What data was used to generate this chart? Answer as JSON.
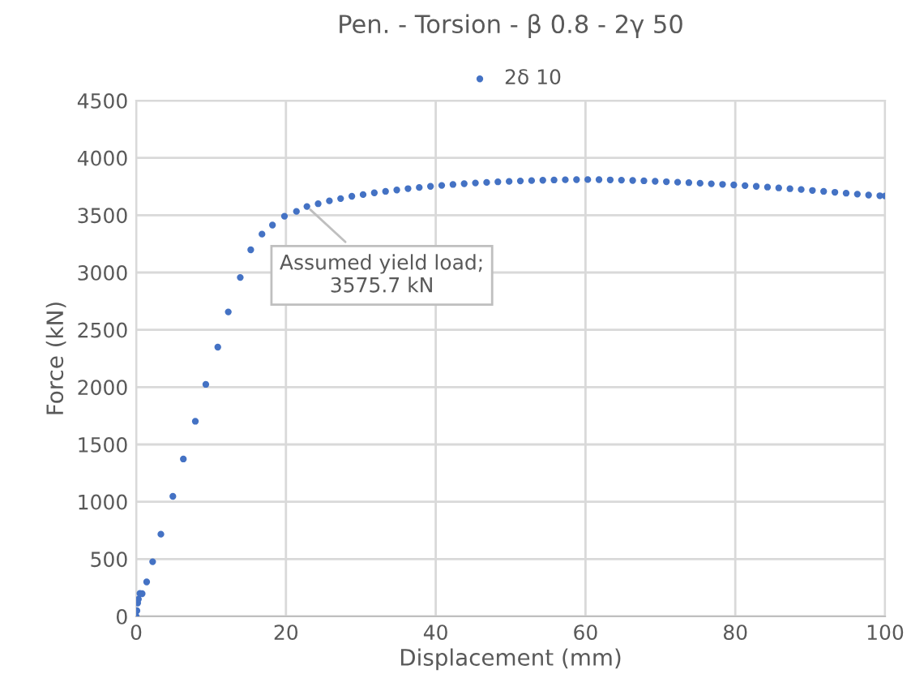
{
  "chart_data": {
    "type": "scatter",
    "title": "Pen. - Torsion - β 0.8 - 2γ 50",
    "xlabel": "Displacement (mm)",
    "ylabel": "Force (kN)",
    "series": [
      {
        "name": "2δ 10",
        "color": "#4472c4",
        "x": [
          0,
          0.1,
          0.2,
          0.3,
          0.5,
          0.8,
          1.4,
          2.2,
          3.3,
          4.9,
          6.3,
          7.9,
          9.3,
          10.9,
          12.3,
          13.9,
          15.3,
          16.8,
          18.2,
          19.8,
          21.4,
          22.8,
          24.3,
          25.8,
          27.3,
          28.8,
          30.3,
          31.8,
          33.3,
          34.8,
          36.3,
          37.8,
          39.3,
          40.8,
          42.3,
          43.8,
          45.3,
          46.8,
          48.3,
          49.8,
          51.3,
          52.8,
          54.3,
          55.8,
          57.3,
          58.8,
          60.3,
          61.8,
          63.3,
          64.8,
          66.3,
          67.8,
          69.3,
          70.8,
          72.3,
          73.8,
          75.3,
          76.8,
          78.3,
          79.8,
          81.3,
          82.8,
          84.3,
          85.8,
          87.3,
          88.8,
          90.3,
          91.8,
          93.3,
          94.8,
          96.3,
          97.8,
          99.3,
          100
        ],
        "values": [
          0,
          50,
          117,
          150,
          200,
          198,
          301,
          477,
          717,
          1047,
          1373,
          1702,
          2024,
          2349,
          2656,
          2957,
          3198,
          3335,
          3414,
          3491,
          3533,
          3576,
          3600,
          3625,
          3645,
          3665,
          3680,
          3695,
          3708,
          3720,
          3732,
          3742,
          3752,
          3760,
          3768,
          3775,
          3781,
          3786,
          3791,
          3795,
          3799,
          3802,
          3805,
          3807,
          3809,
          3810,
          3811,
          3810,
          3808,
          3806,
          3803,
          3800,
          3796,
          3792,
          3788,
          3784,
          3779,
          3774,
          3769,
          3764,
          3758,
          3752,
          3745,
          3738,
          3731,
          3724,
          3716,
          3708,
          3700,
          3692,
          3684,
          3676,
          3670,
          3668
        ]
      }
    ],
    "annotations": [
      {
        "text": "Assumed yield load;\n3575.7 kN",
        "x": 22.8,
        "y": 3575.7
      }
    ],
    "xlim": [
      0,
      100
    ],
    "xticks": [
      0,
      20,
      40,
      60,
      80,
      100
    ],
    "ylim": [
      0,
      4500
    ],
    "yticks": [
      0,
      500,
      1000,
      1500,
      2000,
      2500,
      3000,
      3500,
      4000,
      4500
    ],
    "grid": true,
    "legend": "top",
    "marker": "circle"
  }
}
